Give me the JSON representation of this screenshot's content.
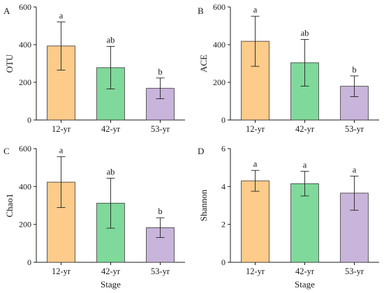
{
  "chart_data": [
    {
      "type": "bar",
      "panel": "A",
      "xlabel": "",
      "ylabel": "OTU",
      "ylim": [
        0,
        600
      ],
      "yticks": [
        0,
        200,
        400,
        600
      ],
      "categories": [
        "12-yr",
        "42-yr",
        "53-yr"
      ],
      "values": [
        393,
        278,
        168
      ],
      "errors": [
        128,
        113,
        55
      ],
      "significance": [
        "a",
        "ab",
        "b"
      ],
      "colors": [
        "#FDCB8A",
        "#7FD99A",
        "#C9B4DB"
      ]
    },
    {
      "type": "bar",
      "panel": "B",
      "xlabel": "",
      "ylabel": "ACE",
      "ylim": [
        0,
        600
      ],
      "yticks": [
        0,
        200,
        400,
        600
      ],
      "categories": [
        "12-yr",
        "42-yr",
        "53-yr"
      ],
      "values": [
        418,
        304,
        179
      ],
      "errors": [
        133,
        124,
        55
      ],
      "significance": [
        "a",
        "ab",
        "b"
      ],
      "colors": [
        "#FDCB8A",
        "#7FD99A",
        "#C9B4DB"
      ]
    },
    {
      "type": "bar",
      "panel": "C",
      "xlabel": "Stage",
      "ylabel": "Chao1",
      "ylim": [
        0,
        600
      ],
      "yticks": [
        0,
        200,
        400,
        600
      ],
      "categories": [
        "12-yr",
        "42-yr",
        "53-yr"
      ],
      "values": [
        423,
        312,
        183
      ],
      "errors": [
        134,
        132,
        52
      ],
      "significance": [
        "a",
        "ab",
        "b"
      ],
      "colors": [
        "#FDCB8A",
        "#7FD99A",
        "#C9B4DB"
      ]
    },
    {
      "type": "bar",
      "panel": "D",
      "xlabel": "Stage",
      "ylabel": "Shannon",
      "ylim": [
        0,
        6
      ],
      "yticks": [
        0,
        2,
        4,
        6
      ],
      "categories": [
        "12-yr",
        "42-yr",
        "53-yr"
      ],
      "values": [
        4.3,
        4.15,
        3.65
      ],
      "errors": [
        0.55,
        0.65,
        0.9
      ],
      "significance": [
        "a",
        "a",
        "a"
      ],
      "colors": [
        "#FDCB8A",
        "#7FD99A",
        "#C9B4DB"
      ]
    }
  ]
}
